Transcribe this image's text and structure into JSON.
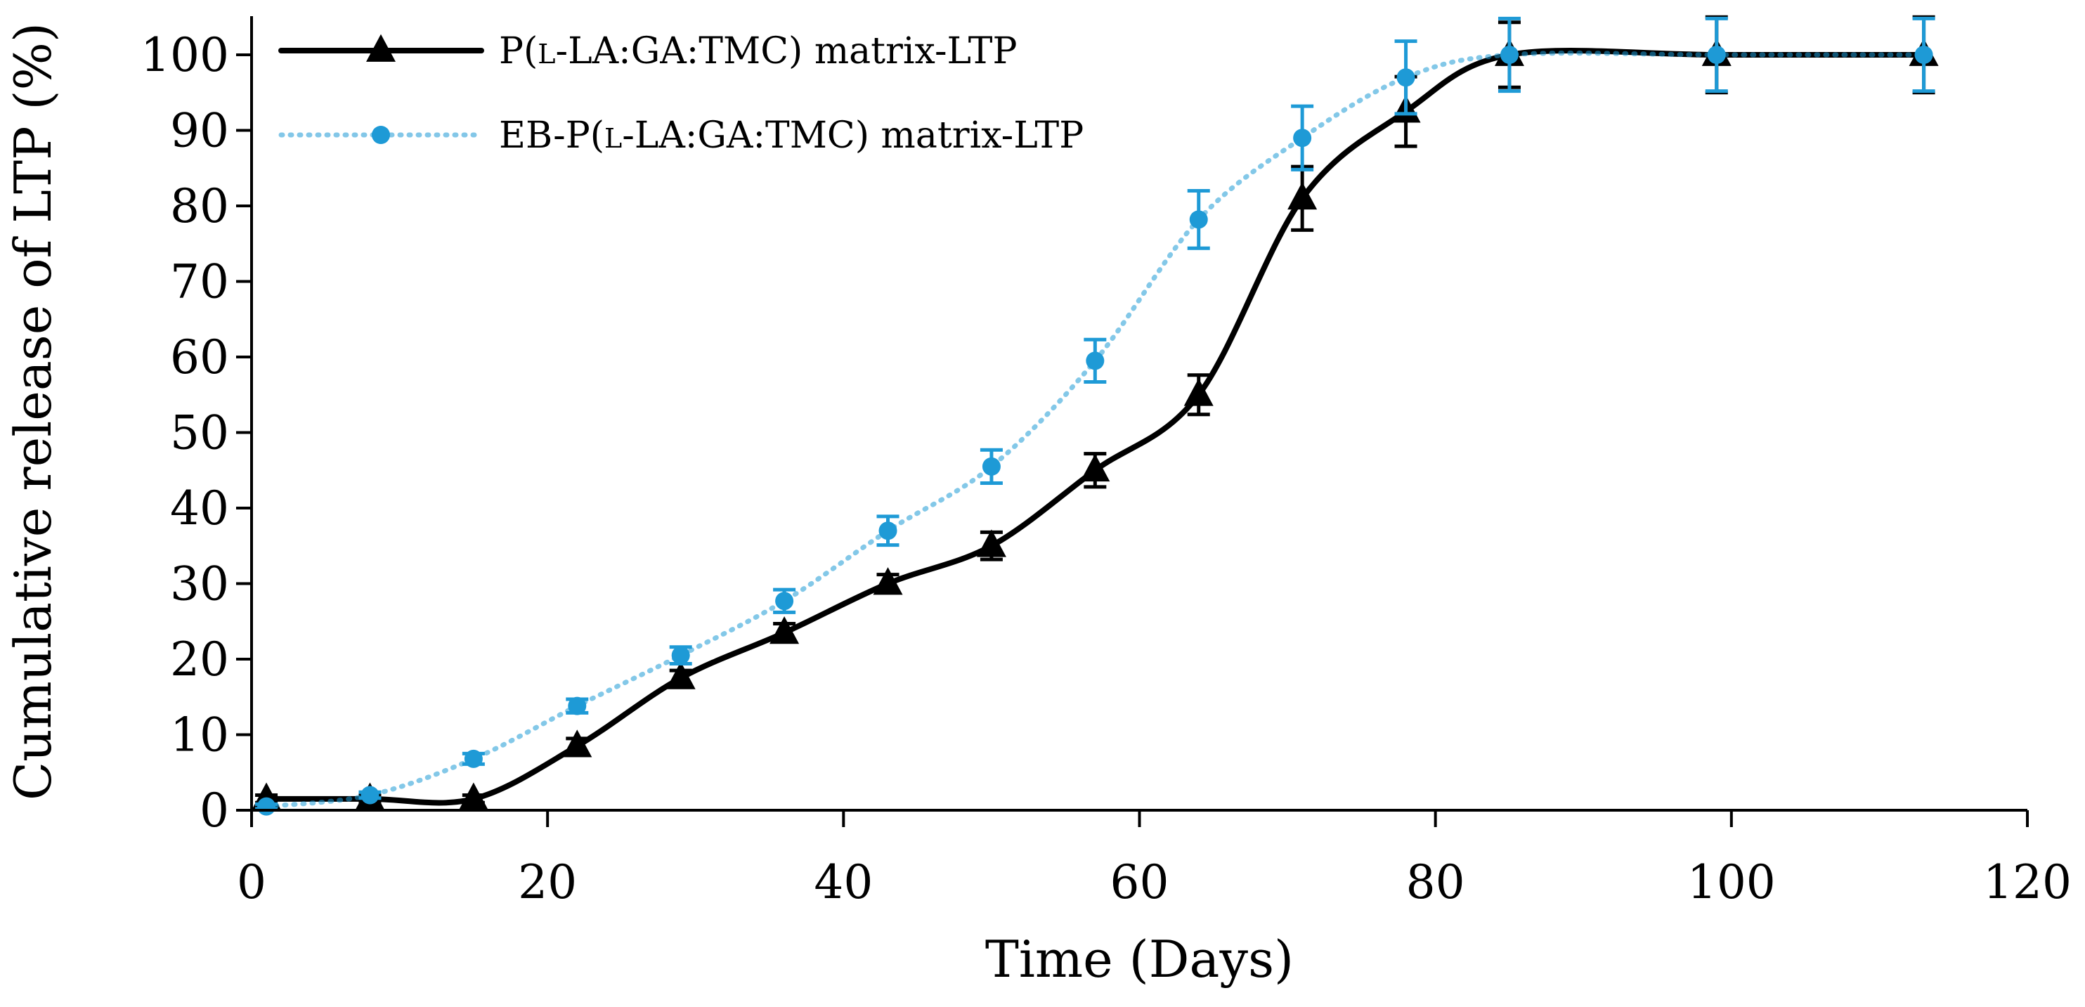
{
  "chart_data": {
    "type": "line",
    "title": "",
    "xlabel": "Time (Days)",
    "ylabel": "Cumulative release of LTP (%)",
    "xlim": [
      0,
      120
    ],
    "ylim": [
      0,
      100
    ],
    "x_ticks": [
      0,
      20,
      40,
      60,
      80,
      100,
      120
    ],
    "y_ticks": [
      0,
      10,
      20,
      30,
      40,
      50,
      60,
      70,
      80,
      90,
      100
    ],
    "grid": false,
    "legend_position": "top-left",
    "series": [
      {
        "name": "P(l-LA:GA:TMC) matrix-LTP",
        "color": "#000000",
        "line_style": "solid",
        "marker": "triangle",
        "x": [
          1,
          8,
          15,
          22,
          29,
          36,
          43,
          50,
          57,
          64,
          71,
          78,
          85,
          99,
          113
        ],
        "values": [
          1.5,
          1.5,
          1.5,
          8.5,
          17.5,
          23.5,
          30,
          35,
          45,
          55,
          81,
          92.5,
          100,
          100,
          100
        ],
        "errors": [
          0.5,
          0.5,
          0.5,
          1,
          1,
          1.2,
          1.2,
          1.8,
          2.2,
          2.6,
          4.2,
          4.6,
          4.3,
          5,
          5
        ]
      },
      {
        "name": "EB-P(l-LA:GA:TMC) matrix-LTP",
        "color": "#1E9AD6",
        "line_style": "dotted",
        "marker": "circle",
        "x": [
          1,
          8,
          15,
          22,
          29,
          36,
          43,
          50,
          57,
          64,
          71,
          78,
          85,
          99,
          113
        ],
        "values": [
          0.5,
          2,
          6.8,
          13.8,
          20.5,
          27.7,
          37,
          45.5,
          59.5,
          78.2,
          89,
          97,
          100,
          100,
          100
        ],
        "errors": [
          0.3,
          0.4,
          0.7,
          0.9,
          1.1,
          1.5,
          1.9,
          2.2,
          2.8,
          3.8,
          4.2,
          4.8,
          4.8,
          4.8,
          4.8
        ]
      }
    ]
  },
  "legend_label_parts": [
    {
      "pre": "P(",
      "smallcaps": "l",
      "post": "-LA:GA:TMC) matrix-LTP"
    },
    {
      "pre": "EB-P(",
      "smallcaps": "l",
      "post": "-LA:GA:TMC) matrix-LTP"
    }
  ]
}
